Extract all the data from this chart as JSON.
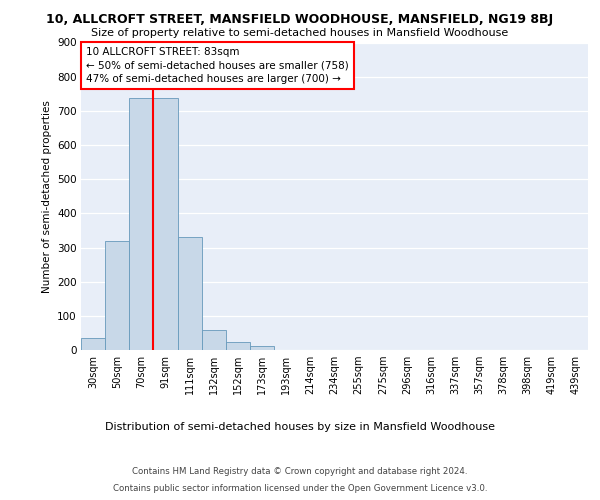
{
  "title_line1": "10, ALLCROFT STREET, MANSFIELD WOODHOUSE, MANSFIELD, NG19 8BJ",
  "title_line2": "Size of property relative to semi-detached houses in Mansfield Woodhouse",
  "xlabel": "Distribution of semi-detached houses by size in Mansfield Woodhouse",
  "ylabel": "Number of semi-detached properties",
  "footer_line1": "Contains HM Land Registry data © Crown copyright and database right 2024.",
  "footer_line2": "Contains public sector information licensed under the Open Government Licence v3.0.",
  "categories": [
    "30sqm",
    "50sqm",
    "70sqm",
    "91sqm",
    "111sqm",
    "132sqm",
    "152sqm",
    "173sqm",
    "193sqm",
    "214sqm",
    "234sqm",
    "255sqm",
    "275sqm",
    "296sqm",
    "316sqm",
    "337sqm",
    "357sqm",
    "378sqm",
    "398sqm",
    "419sqm",
    "439sqm"
  ],
  "values": [
    35,
    320,
    738,
    738,
    330,
    58,
    22,
    12,
    0,
    0,
    0,
    0,
    0,
    0,
    0,
    0,
    0,
    0,
    0,
    0,
    0
  ],
  "bar_color": "#c8d8e8",
  "bar_edge_color": "#6699bb",
  "annotation_text": "10 ALLCROFT STREET: 83sqm\n← 50% of semi-detached houses are smaller (758)\n47% of semi-detached houses are larger (700) →",
  "vline_x": 2.5,
  "vline_color": "red",
  "annotation_box_color": "white",
  "annotation_box_edge_color": "red",
  "ylim": [
    0,
    900
  ],
  "yticks": [
    0,
    100,
    200,
    300,
    400,
    500,
    600,
    700,
    800,
    900
  ],
  "plot_bg_color": "#e8eef8",
  "grid_color": "white"
}
